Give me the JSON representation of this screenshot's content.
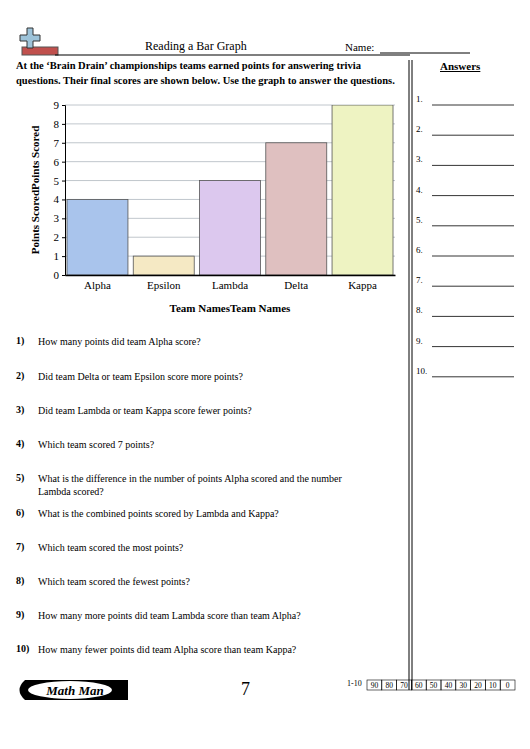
{
  "header": {
    "title": "Reading a Bar Graph",
    "name_label": "Name:"
  },
  "intro": "At the ‘Brain Drain’ championships teams earned points for answering trivia questions. Their final scores are shown below. Use the graph to answer the questions.",
  "answers": {
    "title": "Answers",
    "numbers": [
      "1.",
      "2.",
      "3.",
      "4.",
      "5.",
      "6.",
      "7.",
      "8.",
      "9.",
      "10."
    ]
  },
  "chart_data": {
    "type": "bar",
    "categories": [
      "Alpha",
      "Epsilon",
      "Lambda",
      "Delta",
      "Kappa"
    ],
    "values": [
      4,
      1,
      5,
      7,
      9
    ],
    "colors": [
      "#a9c4ec",
      "#f5e9c4",
      "#dcc8ee",
      "#dfc0c0",
      "#eef3c2"
    ],
    "xlabel": "Team NamesTeam Names",
    "ylabel": "Points ScoredPoints Scored",
    "ylim": [
      0,
      9
    ],
    "yticks": [
      0,
      1,
      2,
      3,
      4,
      5,
      6,
      7,
      8,
      9
    ],
    "grid": true
  },
  "questions": [
    {
      "number": "1)",
      "text": "How many points did team Alpha score?"
    },
    {
      "number": "2)",
      "text": "Did team Delta or team Epsilon score more points?"
    },
    {
      "number": "3)",
      "text": "Did team Lambda or team Kappa score fewer points?"
    },
    {
      "number": "4)",
      "text": "Which team scored 7 points?"
    },
    {
      "number": "5)",
      "text": "What is the difference in the number of points Alpha scored and the number Lambda scored?"
    },
    {
      "number": "6)",
      "text": "What is the combined points scored by Lambda and Kappa?"
    },
    {
      "number": "7)",
      "text": "Which team scored the most points?"
    },
    {
      "number": "8)",
      "text": "Which team scored the fewest points?"
    },
    {
      "number": "9)",
      "text": "How many more points did team Lambda score than team Alpha?"
    },
    {
      "number": "10)",
      "text": "How many fewer points did team Alpha score than team Kappa?"
    }
  ],
  "footer": {
    "brand": "Math Man",
    "page": "7",
    "score_label": "1-10",
    "scores": [
      90,
      80,
      70,
      60,
      50,
      40,
      30,
      20,
      10,
      0
    ]
  }
}
